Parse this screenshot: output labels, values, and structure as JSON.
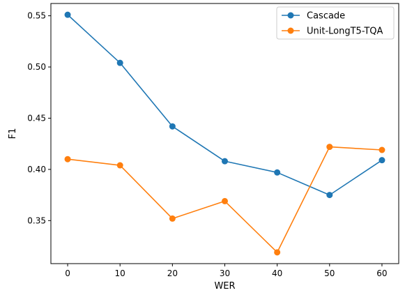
{
  "chart_data": {
    "type": "line",
    "title": "",
    "xlabel": "WER",
    "ylabel": "F1",
    "x": [
      0,
      10,
      20,
      30,
      40,
      50,
      60
    ],
    "xticks": [
      0,
      10,
      20,
      30,
      40,
      50,
      60
    ],
    "yticks": [
      0.35,
      0.4,
      0.45,
      0.5,
      0.55
    ],
    "xlim": [
      -3.2,
      63.2
    ],
    "ylim": [
      0.308,
      0.562
    ],
    "grid": false,
    "legend_position": "top-right",
    "series": [
      {
        "name": "Cascade",
        "color": "#1f77b4",
        "values": [
          0.551,
          0.504,
          0.442,
          0.408,
          0.397,
          0.375,
          0.409
        ]
      },
      {
        "name": "Unit-LongT5-TQA",
        "color": "#ff7f0e",
        "values": [
          0.41,
          0.404,
          0.352,
          0.369,
          0.319,
          0.422,
          0.419
        ]
      }
    ]
  }
}
